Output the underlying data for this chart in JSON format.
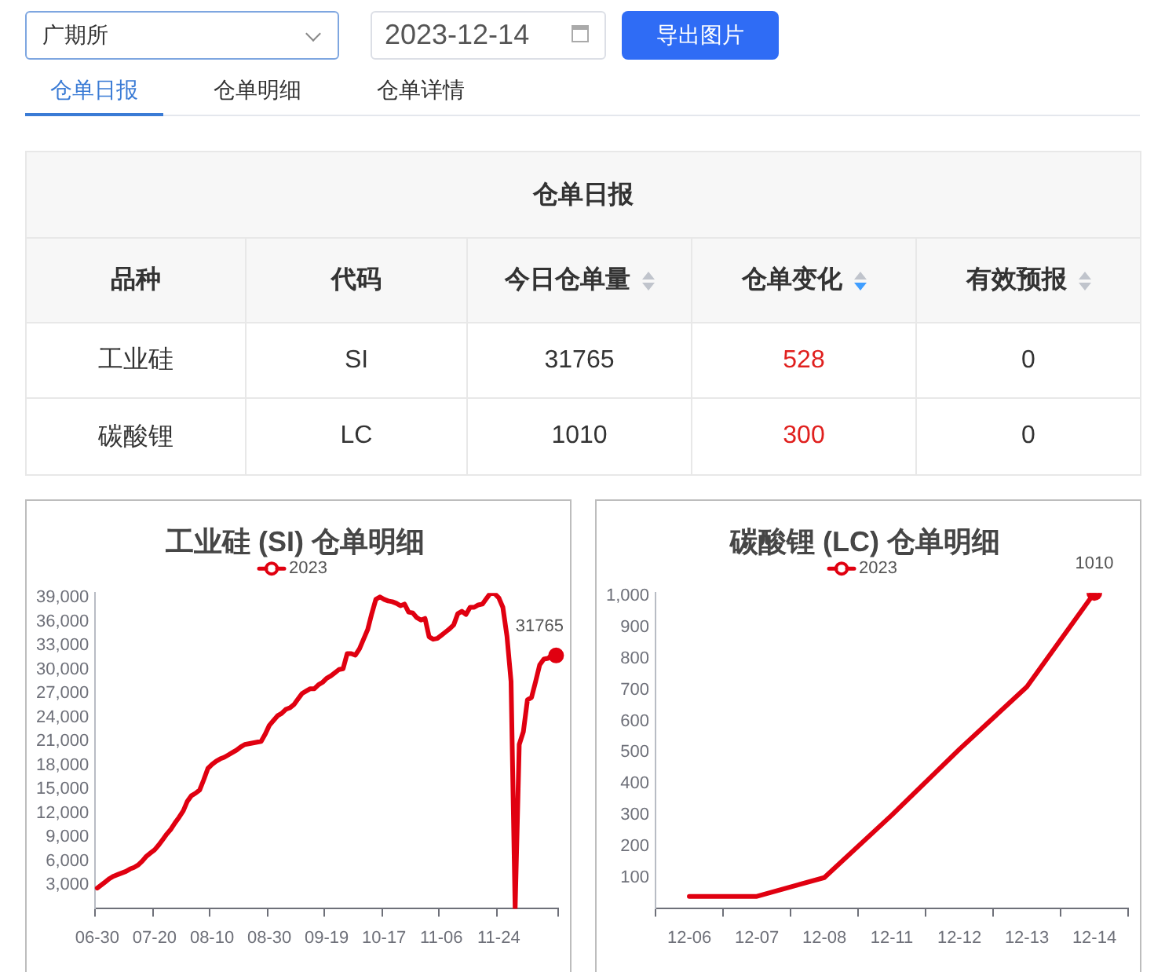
{
  "chart_data": [
    {
      "type": "other",
      "annotations": [
        "广期所",
        "2023-12-14",
        "导出图片",
        "仓单日报",
        "仓单明细",
        "仓单详情"
      ]
    },
    {
      "type": "other",
      "title": "仓单日报",
      "categories": [
        "品种",
        "代码",
        "今日仓单量",
        "仓单变化",
        "有效预报"
      ],
      "annotations": [
        "工业硅",
        "SI",
        "31765",
        "528",
        "0",
        "碳酸锂",
        "LC",
        "1010",
        "300",
        "0"
      ]
    },
    {
      "type": "line",
      "title": "工业硅 (SI) 仓单明细",
      "categories": [
        "06-30",
        null,
        null,
        null,
        null,
        null,
        null,
        null,
        null,
        null,
        null,
        null,
        null,
        null,
        "07-20",
        null,
        null,
        null,
        null,
        null,
        null,
        null,
        null,
        null,
        null,
        null,
        null,
        null,
        "08-10",
        null,
        null,
        null,
        null,
        null,
        null,
        null,
        null,
        null,
        null,
        null,
        null,
        null,
        "08-30",
        null,
        null,
        null,
        null,
        null,
        null,
        null,
        null,
        null,
        null,
        null,
        null,
        null,
        "09-19",
        null,
        null,
        null,
        null,
        null,
        null,
        null,
        null,
        null,
        null,
        null,
        null,
        null,
        "10-17",
        null,
        null,
        null,
        null,
        null,
        null,
        null,
        null,
        null,
        null,
        null,
        null,
        null,
        "11-06",
        null,
        null,
        null,
        null,
        null,
        null,
        null,
        null,
        null,
        null,
        null,
        null,
        null,
        "11-24",
        null,
        null,
        null,
        null,
        null,
        null,
        null,
        null,
        null,
        null,
        null,
        null,
        null,
        null
      ],
      "series": [
        {
          "name": "2023",
          "color": "#e00010",
          "values": [
            2600,
            3000,
            3400,
            3800,
            4100,
            4300,
            4500,
            4700,
            5000,
            5200,
            5500,
            6000,
            6600,
            7000,
            7400,
            8000,
            8700,
            9400,
            10000,
            10800,
            11500,
            12300,
            13500,
            14200,
            14500,
            14900,
            16200,
            17600,
            18100,
            18500,
            18800,
            19000,
            19300,
            19600,
            19900,
            20300,
            20600,
            20700,
            20800,
            20900,
            21000,
            21900,
            23000,
            23600,
            24200,
            24500,
            25000,
            25200,
            25600,
            26300,
            27000,
            27300,
            27600,
            27600,
            28100,
            28400,
            28900,
            29200,
            29600,
            30000,
            30100,
            32000,
            32000,
            31800,
            32600,
            33800,
            35000,
            37000,
            38800,
            39100,
            38800,
            38600,
            38500,
            38300,
            38000,
            38200,
            37200,
            37100,
            36500,
            36200,
            36400,
            34100,
            33800,
            33900,
            34300,
            34700,
            35100,
            35600,
            37000,
            37300,
            36900,
            37800,
            37800,
            38100,
            38200,
            38900,
            39600,
            39500,
            39000,
            37800,
            34200,
            28500,
            0,
            20600,
            22200,
            26200,
            26500,
            28500,
            30600,
            31300,
            31400,
            31800,
            31765
          ],
          "value_labels": [
            null,
            null,
            null,
            null,
            null,
            null,
            null,
            null,
            null,
            null,
            null,
            null,
            null,
            null,
            null,
            null,
            null,
            null,
            null,
            null,
            null,
            null,
            null,
            null,
            null,
            null,
            null,
            null,
            null,
            null,
            null,
            null,
            null,
            null,
            null,
            null,
            null,
            null,
            null,
            null,
            null,
            null,
            null,
            null,
            null,
            null,
            null,
            null,
            null,
            null,
            null,
            null,
            null,
            null,
            null,
            null,
            null,
            null,
            null,
            null,
            null,
            null,
            null,
            null,
            null,
            null,
            null,
            null,
            null,
            null,
            null,
            null,
            null,
            null,
            null,
            null,
            null,
            null,
            null,
            null,
            null,
            null,
            null,
            null,
            null,
            null,
            null,
            null,
            null,
            null,
            null,
            null,
            null,
            null,
            null,
            null,
            null,
            null,
            null,
            null,
            null,
            null,
            null,
            null,
            null,
            null,
            null,
            null,
            null,
            null,
            null,
            null,
            "31765"
          ]
        }
      ],
      "ylim": [
        0,
        39600
      ],
      "yticks": [
        {
          "value": 3000,
          "label": "3,000"
        },
        {
          "value": 6000,
          "label": "6,000"
        },
        {
          "value": 9000,
          "label": "9,000"
        },
        {
          "value": 12000,
          "label": "12,000"
        },
        {
          "value": 15000,
          "label": "15,000"
        },
        {
          "value": 18000,
          "label": "18,000"
        },
        {
          "value": 21000,
          "label": "21,000"
        },
        {
          "value": 24000,
          "label": "24,000"
        },
        {
          "value": 27000,
          "label": "27,000"
        },
        {
          "value": 30000,
          "label": "30,000"
        },
        {
          "value": 33000,
          "label": "33,000"
        },
        {
          "value": 36000,
          "label": "36,000"
        },
        {
          "value": 39000,
          "label": "39,000"
        }
      ],
      "legend": "top"
    },
    {
      "type": "line",
      "title": "碳酸锂 (LC) 仓单明细",
      "categories": [
        "12-06",
        "12-07",
        "12-08",
        "12-11",
        "12-12",
        "12-13",
        "12-14"
      ],
      "series": [
        {
          "name": "2023",
          "color": "#e00010",
          "values": [
            40,
            40,
            100,
            300,
            510,
            710,
            1010
          ],
          "value_labels": [
            null,
            null,
            null,
            null,
            null,
            null,
            "1010"
          ]
        }
      ],
      "ylim": [
        0,
        1010
      ],
      "yticks": [
        100,
        200,
        300,
        400,
        500,
        600,
        700,
        800,
        900,
        {
          "value": 1000,
          "label": "1,000"
        }
      ],
      "legend": "top"
    }
  ]
}
